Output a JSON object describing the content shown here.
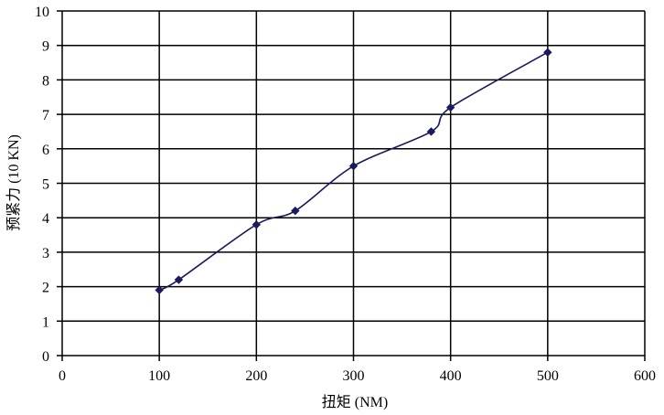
{
  "chart_data": {
    "type": "line",
    "title": "",
    "xlabel": "扭矩 (NM)",
    "ylabel": "预紧力 (10 KN)",
    "xlim": [
      0,
      600
    ],
    "ylim": [
      0,
      10
    ],
    "x_ticks": [
      0,
      100,
      200,
      300,
      400,
      500,
      600
    ],
    "y_ticks": [
      0,
      1,
      2,
      3,
      4,
      5,
      6,
      7,
      8,
      9,
      10
    ],
    "grid": true,
    "legend": "none",
    "series": [
      {
        "color": "#1a1a5e",
        "marker": "diamond",
        "x": [
          100,
          120,
          200,
          240,
          300,
          380,
          400,
          500
        ],
        "y": [
          1.9,
          2.2,
          3.8,
          4.2,
          5.5,
          6.5,
          7.2,
          8.8
        ]
      }
    ]
  }
}
